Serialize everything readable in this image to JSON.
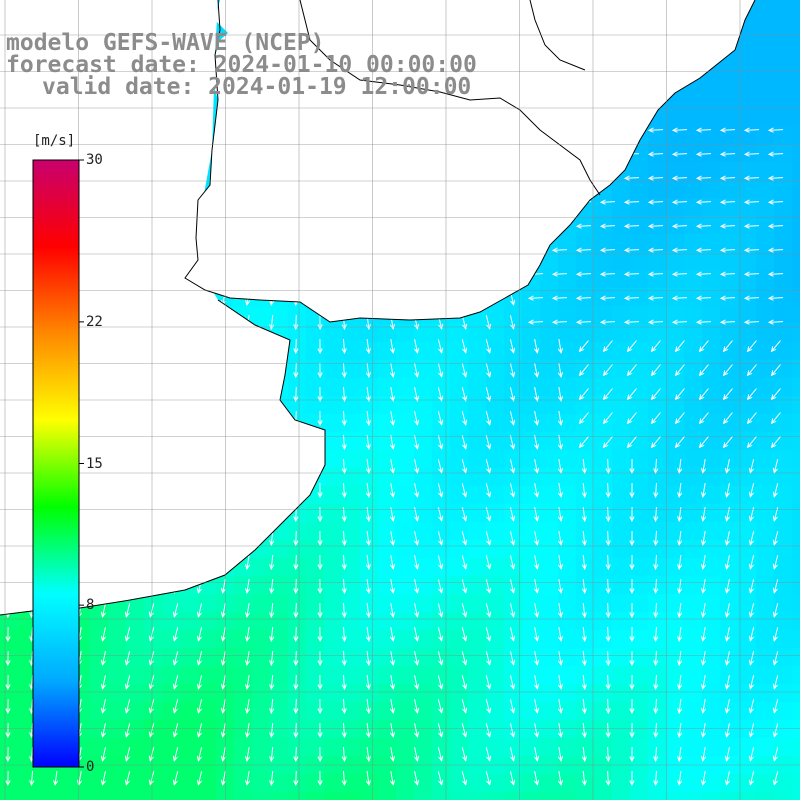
{
  "title": {
    "line1": "modelo GEFS-WAVE (NCEP)",
    "line2": "forecast date: 2024-01-10 00:00:00",
    "line3": "valid date: 2024-01-19 12:00:00"
  },
  "colorbar": {
    "unit": "[m/s]",
    "ticks": [
      {
        "value": 30,
        "label": "30"
      },
      {
        "value": 22,
        "label": "22"
      },
      {
        "value": 15,
        "label": "15"
      },
      {
        "value": 8,
        "label": "8"
      },
      {
        "value": 0,
        "label": "0"
      }
    ],
    "colors": [
      "#0000ff",
      "#00aaff",
      "#00ffff",
      "#00ff00",
      "#ffff00",
      "#ff8800",
      "#ff0000",
      "#c8006e"
    ]
  },
  "field": {
    "variable": "wind speed",
    "direction": "predominantly southward (from N/NE)",
    "range_m_s": [
      5,
      10
    ]
  },
  "colors": {
    "land": "#ffffff",
    "coast": "#000000",
    "grid": "#888888",
    "arrows": "#ffffff",
    "title": "#8c8c8c"
  }
}
